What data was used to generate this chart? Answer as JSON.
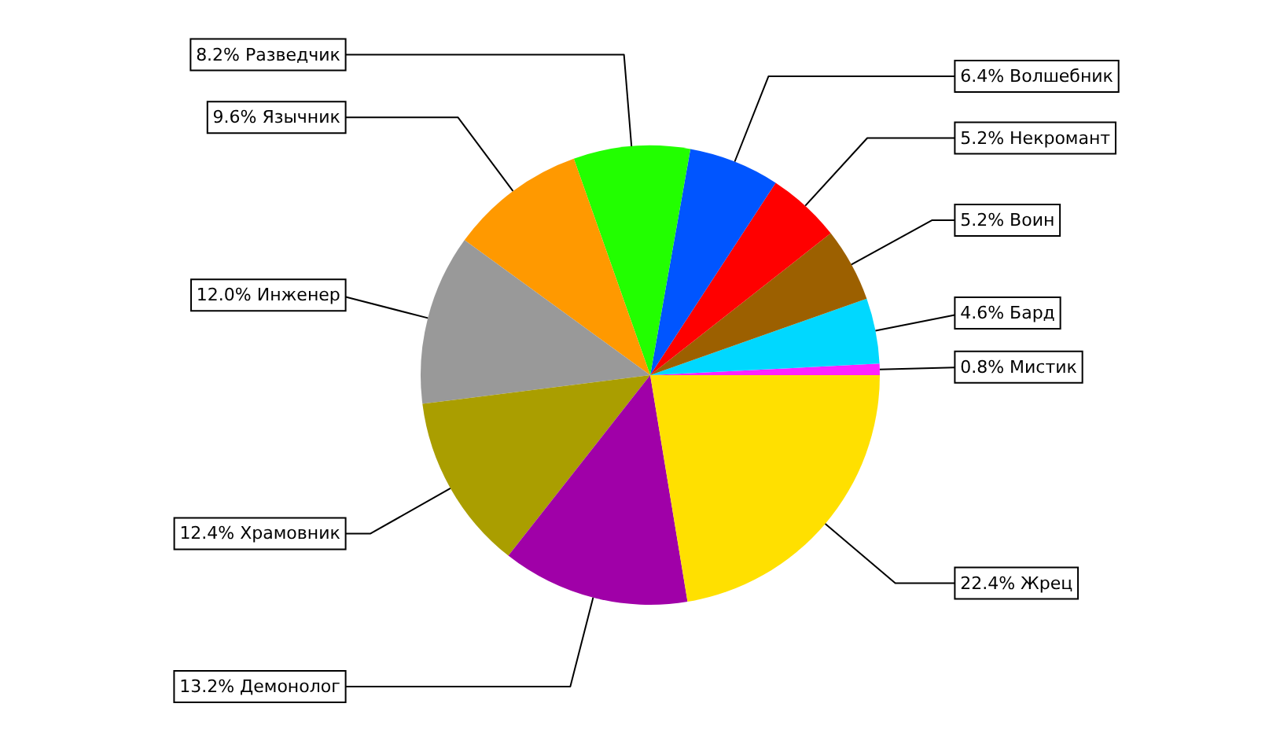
{
  "chart_data": {
    "type": "pie",
    "categories": [
      "Мистик",
      "Бард",
      "Воин",
      "Некромант",
      "Волшебник",
      "Разведчик",
      "Язычник",
      "Инженер",
      "Храмовник",
      "Демонолог",
      "Жрец"
    ],
    "values": [
      0.8,
      4.6,
      5.2,
      5.2,
      6.4,
      8.2,
      9.6,
      12.0,
      12.4,
      13.2,
      22.4
    ],
    "colors": [
      "#ff22ff",
      "#00d8ff",
      "#9c6000",
      "#ff0000",
      "#0055ff",
      "#22ff00",
      "#ff9900",
      "#999999",
      "#aa9e00",
      "#a000a8",
      "#ffe000"
    ],
    "value_labels": [
      "0.8%",
      "4.6%",
      "5.2%",
      "5.2%",
      "6.4%",
      "8.2%",
      "9.6%",
      "12.0%",
      "12.4%",
      "13.2%",
      "22.4%"
    ]
  }
}
